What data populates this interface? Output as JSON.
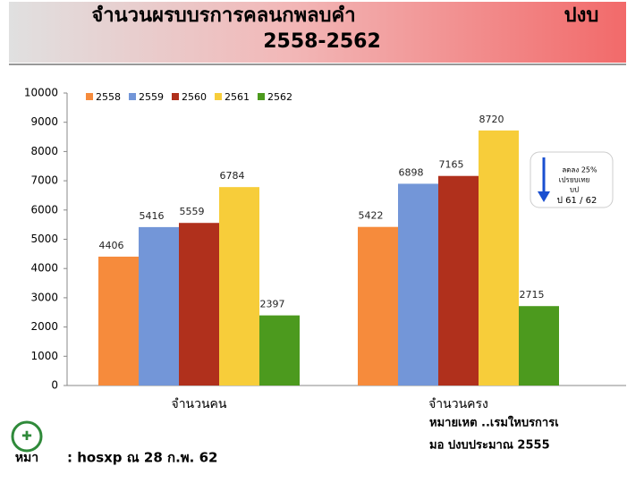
{
  "chart_data": {
    "type": "bar",
    "title": [
      "จำนวนผรบบรการคลนกพลบคำ",
      "ปงบ",
      "2558-2562"
    ],
    "categories": [
      "จำนวนคน",
      "จำนวนครง"
    ],
    "series": [
      {
        "name": "2558",
        "color": "#f68b3c",
        "values": [
          4406,
          5422
        ]
      },
      {
        "name": "2559",
        "color": "#7396d8",
        "values": [
          5416,
          6898
        ]
      },
      {
        "name": "2560",
        "color": "#b0301c",
        "values": [
          5559,
          7165
        ]
      },
      {
        "name": "2561",
        "color": "#f7cd3a",
        "values": [
          6784,
          8720
        ]
      },
      {
        "name": "2562",
        "color": "#4c9a1e",
        "values": [
          2397,
          2715
        ]
      }
    ],
    "ylim": [
      0,
      10000
    ],
    "yticks": [
      0,
      1000,
      2000,
      3000,
      4000,
      5000,
      6000,
      7000,
      8000,
      9000,
      10000
    ],
    "annotation": [
      "ลดลง 25%",
      "เปรยบเทย",
      "บป",
      "ป 61 / 62"
    ],
    "footnote_left": [
      "หมา",
      ": hosxp ณ 28 ก.พ. 62"
    ],
    "footnote_right": [
      "หมายเหต ..เรมใหบรการเ",
      "มอ ปงบประมาณ 2555"
    ]
  }
}
